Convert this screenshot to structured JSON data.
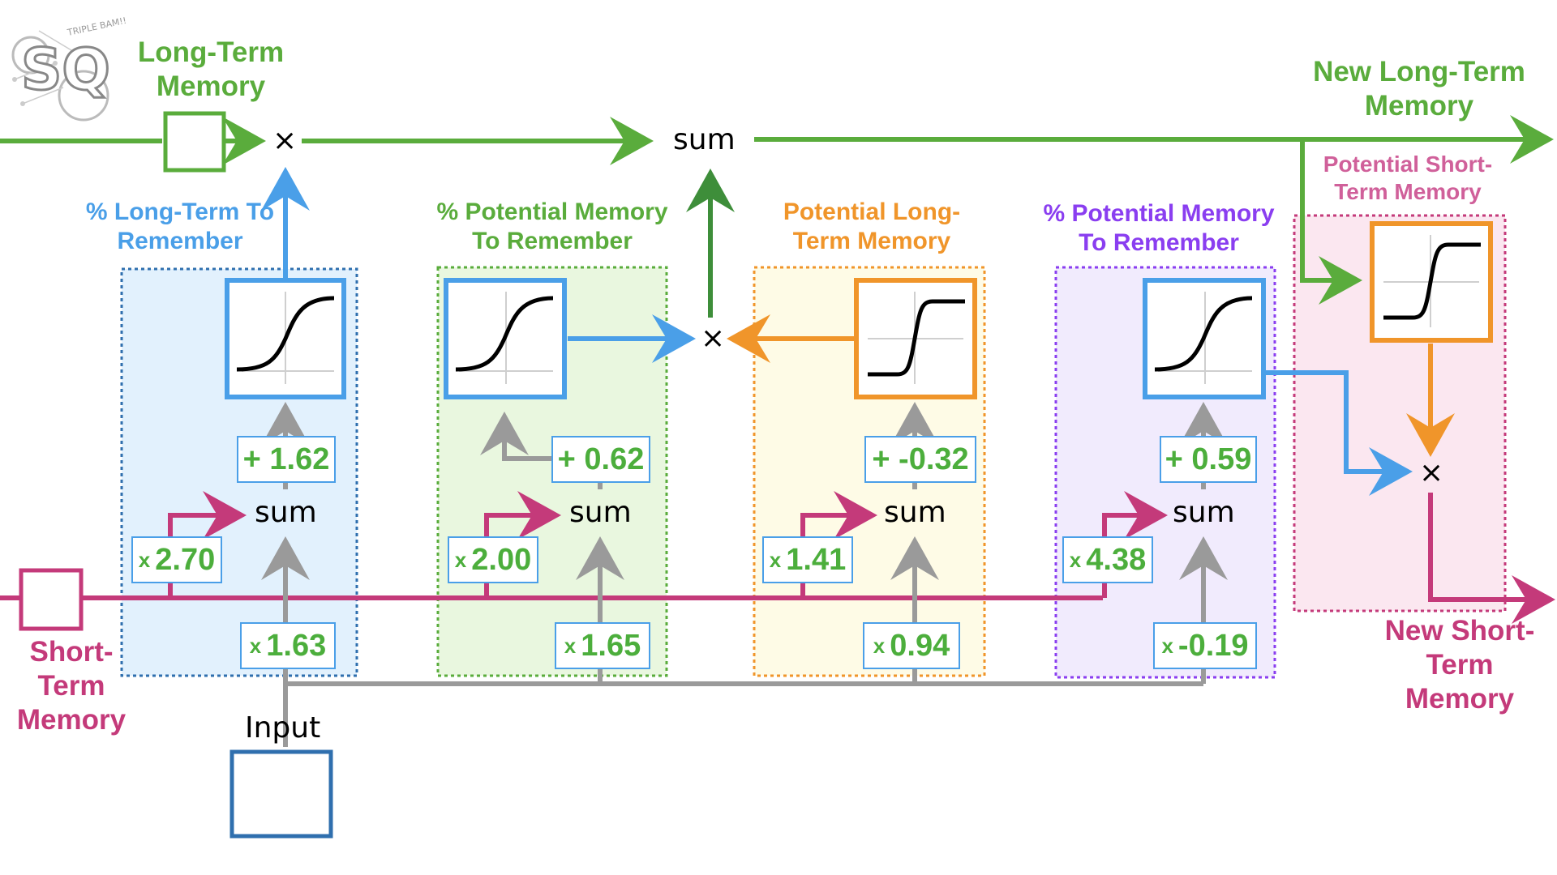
{
  "colors": {
    "green": "#5aac3c",
    "blue": "#4a9fe8",
    "pink": "#c43a7a",
    "orange": "#f0952a",
    "purple": "#8a3ef0",
    "gray": "#9a9a9a",
    "dark_green": "#3e8e3a",
    "input_blue": "#2f6fae",
    "stage1_bg": "#e2f1fd",
    "stage2_bg": "#e9f7df",
    "stage3_bg": "#fefbe6",
    "stage4_bg": "#f1ebfd",
    "stage5_bg": "#fbe7f0"
  },
  "logo": {
    "text_top": "TRIPLE BAM!!",
    "letters": "SQ"
  },
  "labels": {
    "long_term_memory": "Long-Term Memory",
    "new_long_term_memory": "New Long-Term Memory",
    "short_term_memory": "Short-Term Memory",
    "new_short_term_memory": "New Short-Term Memory",
    "input": "Input",
    "stage1": "% Long-Term To Remember",
    "stage2": "% Potential Memory To Remember",
    "stage3": "Potential Long-Term Memory",
    "stage4": "% Potential Memory To Remember",
    "stage5": "Potential Short-Term Memory"
  },
  "operators": {
    "sum": "sum",
    "multiply": "×"
  },
  "stages": [
    {
      "activation": "sigmoid",
      "bias": "+ 1.62",
      "short_term_weight": "2.70",
      "input_weight": "1.63"
    },
    {
      "activation": "sigmoid",
      "bias": "+ 0.62",
      "short_term_weight": "2.00",
      "input_weight": "1.65"
    },
    {
      "activation": "tanh",
      "bias": "+ -0.32",
      "short_term_weight": "1.41",
      "input_weight": "0.94"
    },
    {
      "activation": "sigmoid",
      "bias": "+ 0.59",
      "short_term_weight": "4.38",
      "input_weight": "-0.19"
    },
    {
      "activation": "tanh"
    }
  ],
  "weight_prefix": "x"
}
